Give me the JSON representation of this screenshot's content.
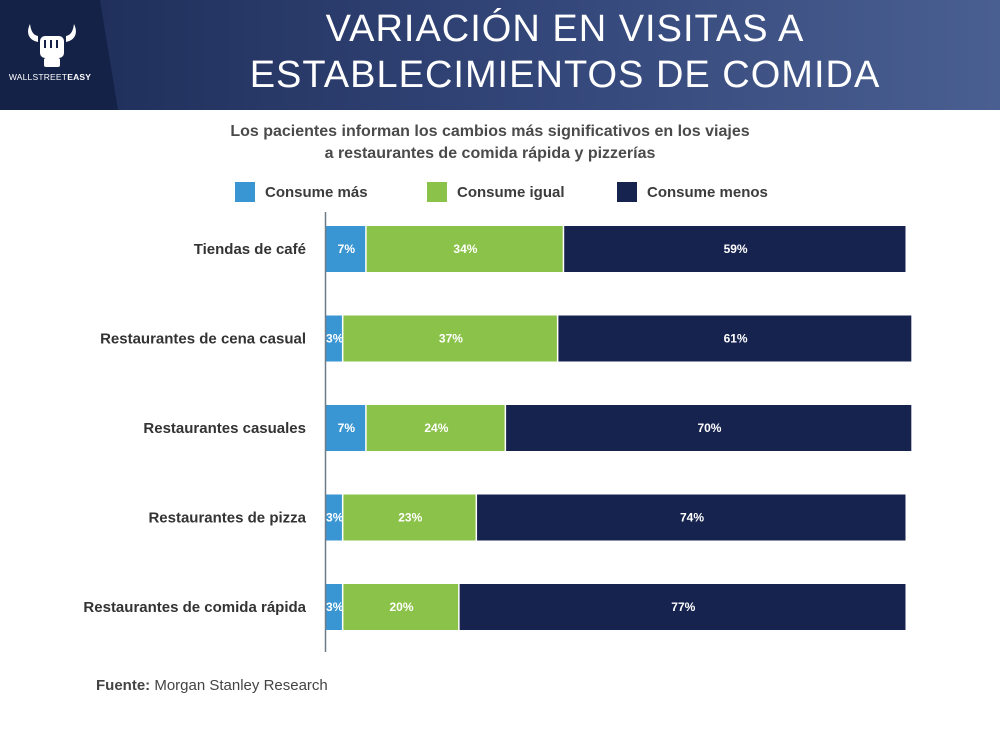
{
  "header": {
    "title_line1": "VARIACIÓN EN VISITAS A",
    "title_line2": "ESTABLECIMIENTOS DE COMIDA",
    "logo_text_prefix": "WALLSTREET",
    "logo_text_suffix": "EASY",
    "logo_icon": "bull-fist-icon"
  },
  "subtitle": {
    "line1": "Los pacientes informan los cambios más significativos en los viajes",
    "line2": "a restaurantes de comida rápida y pizzerías"
  },
  "footer": {
    "source_label": "Fuente:",
    "source_value": "Morgan Stanley Research"
  },
  "colors": {
    "more": "#3a96d3",
    "same": "#8bc249",
    "less": "#17234f"
  },
  "chart_data": {
    "type": "bar",
    "orientation": "horizontal",
    "stacked": true,
    "title": "VARIACIÓN EN VISITAS A ESTABLECIMIENTOS DE COMIDA",
    "xlabel": "",
    "ylabel": "",
    "xlim": [
      0,
      100
    ],
    "grid": false,
    "legend_position": "top",
    "categories": [
      "Tiendas de café",
      "Restaurantes de cena casual",
      "Restaurantes casuales",
      "Restaurantes de pizza",
      "Restaurantes de comida rápida"
    ],
    "series": [
      {
        "name": "Consume más",
        "values": [
          7,
          3,
          7,
          3,
          3
        ],
        "labels": [
          "7%",
          "3%",
          "7%",
          "3%",
          "3%"
        ]
      },
      {
        "name": "Consume igual",
        "values": [
          34,
          37,
          24,
          23,
          20
        ],
        "labels": [
          "34%",
          "37%",
          "24%",
          "23%",
          "20%"
        ]
      },
      {
        "name": "Consume menos",
        "values": [
          59,
          61,
          70,
          74,
          77
        ],
        "labels": [
          "59%",
          "61%",
          "70%",
          "74%",
          "77%"
        ]
      }
    ]
  }
}
